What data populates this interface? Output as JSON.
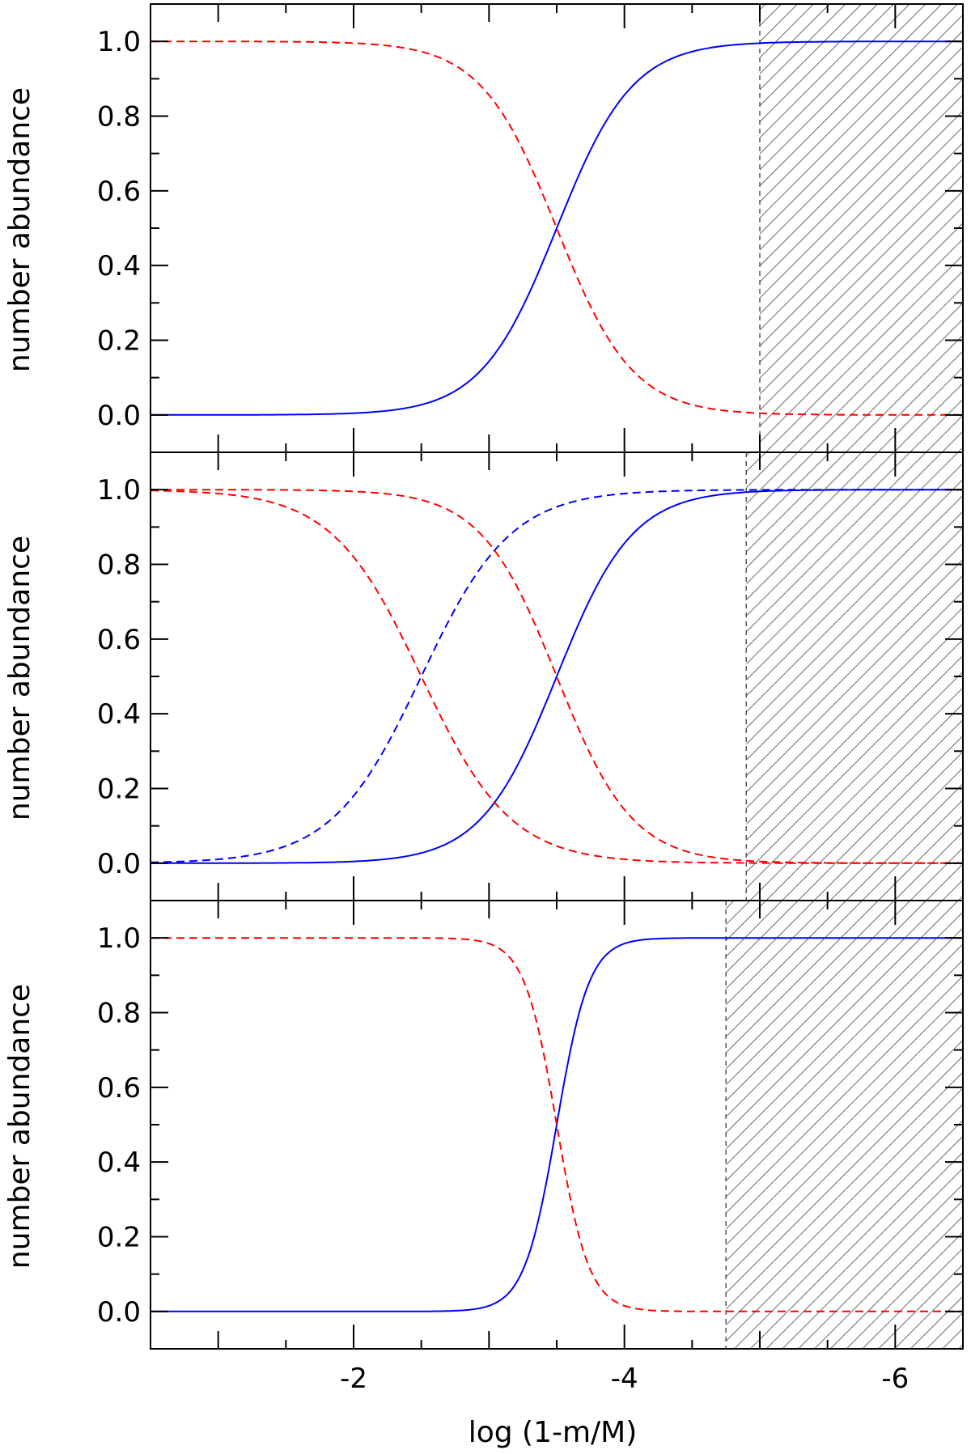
{
  "chart_data": [
    {
      "type": "line",
      "panel": "top",
      "title": "",
      "xlabel": "",
      "ylabel": "number abundance",
      "xlim": [
        -0.5,
        -6.5
      ],
      "ylim": [
        -0.1,
        1.1
      ],
      "yticks": [
        "0.0",
        "0.2",
        "0.4",
        "0.6",
        "0.8",
        "1.0"
      ],
      "grid": false,
      "hatched_region": {
        "x_from": -5.0,
        "x_to": -6.5
      },
      "series": [
        {
          "style": "solid",
          "color": "#0000ff",
          "transition_center": -3.5,
          "transition_width": 0.28,
          "direction": "falling"
        },
        {
          "style": "dashed",
          "color": "#ff0000",
          "transition_center": -3.5,
          "transition_width": 0.28,
          "direction": "rising"
        }
      ]
    },
    {
      "type": "line",
      "panel": "middle",
      "title": "",
      "xlabel": "",
      "ylabel": "number abundance",
      "xlim": [
        -0.5,
        -6.5
      ],
      "ylim": [
        -0.1,
        1.1
      ],
      "yticks": [
        "0.0",
        "0.2",
        "0.4",
        "0.6",
        "0.8",
        "1.0"
      ],
      "grid": false,
      "hatched_region": {
        "x_from": -4.9,
        "x_to": -6.5
      },
      "series": [
        {
          "style": "solid",
          "color": "#0000ff",
          "transition_center": -3.5,
          "transition_width": 0.28,
          "direction": "falling"
        },
        {
          "style": "dashed",
          "color": "#0000ff",
          "transition_center": -2.5,
          "transition_width": 0.33,
          "direction": "falling"
        },
        {
          "style": "dashed",
          "color": "#ff0000",
          "transition_center": -3.5,
          "transition_width": 0.28,
          "direction": "rising"
        },
        {
          "style": "dashed",
          "color": "#ff0000",
          "transition_center": -2.5,
          "transition_width": 0.33,
          "direction": "rising"
        }
      ]
    },
    {
      "type": "line",
      "panel": "bottom",
      "title": "",
      "xlabel": "log (1-m/M)",
      "ylabel": "number abundance",
      "xlim": [
        -0.5,
        -6.5
      ],
      "ylim": [
        -0.1,
        1.1
      ],
      "xticks": [
        "-2",
        "-4",
        "-6"
      ],
      "yticks": [
        "0.0",
        "0.2",
        "0.4",
        "0.6",
        "0.8",
        "1.0"
      ],
      "grid": false,
      "hatched_region": {
        "x_from": -4.75,
        "x_to": -6.5
      },
      "series": [
        {
          "style": "solid",
          "color": "#0000ff",
          "transition_center": -3.5,
          "transition_width": 0.12,
          "direction": "falling"
        },
        {
          "style": "dashed",
          "color": "#ff0000",
          "transition_center": -3.5,
          "transition_width": 0.12,
          "direction": "rising"
        }
      ]
    }
  ]
}
